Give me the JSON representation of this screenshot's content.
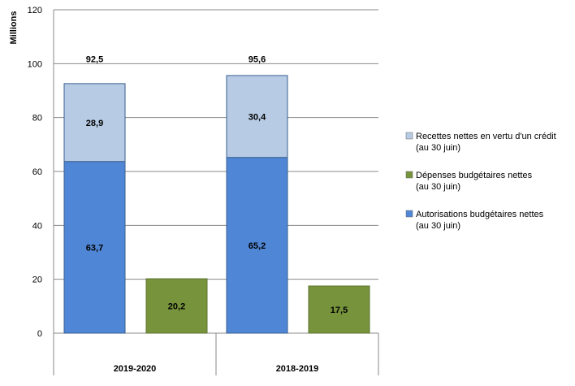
{
  "chart_data": {
    "type": "bar",
    "ylabel": "Millions",
    "ylim": [
      0,
      120
    ],
    "yticks": [
      0,
      20,
      40,
      60,
      80,
      100,
      120
    ],
    "categories": [
      "2019-2020",
      "2018-2019"
    ],
    "series": [
      {
        "name": "Autorisations budgétaires nettes",
        "name_line2": "(au 30 juin)",
        "stack": "A",
        "values": [
          63.7,
          65.2
        ],
        "labels": [
          "63,7",
          "65,2"
        ],
        "color": "#4f87d6"
      },
      {
        "name": "Recettes nettes en vertu d'un crédit",
        "name_line2": "(au 30 juin)",
        "stack": "A",
        "values": [
          28.9,
          30.4
        ],
        "labels": [
          "28,9",
          "30,4"
        ],
        "color": "#b7cbe4"
      },
      {
        "name": "Dépenses budgétaires nettes",
        "name_line2": "(au 30 juin)",
        "stack": "B",
        "values": [
          20.2,
          17.5
        ],
        "labels": [
          "20,2",
          "17,5"
        ],
        "color": "#77933c"
      }
    ],
    "stack_totals": {
      "labels": [
        "92,5",
        "95,6"
      ]
    },
    "legend_position": "right",
    "grid": true
  }
}
